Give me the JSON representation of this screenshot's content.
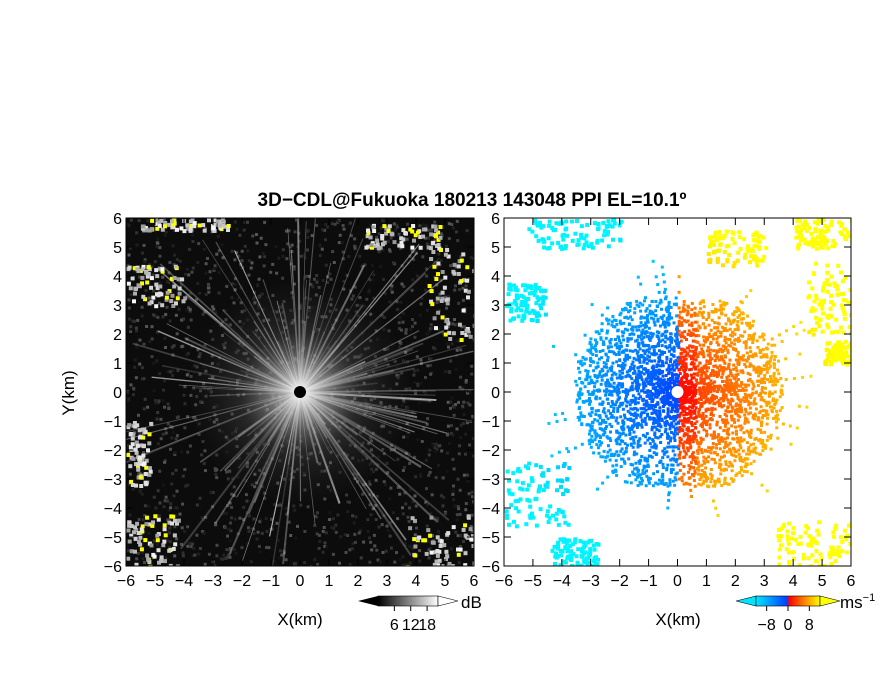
{
  "chart_data": [
    {
      "type": "heatmap",
      "panel": "left",
      "xlabel": "X(km)",
      "ylabel": "Y(km)",
      "xlim": [
        -6,
        6
      ],
      "ylim": [
        -6,
        6
      ],
      "xticks": [
        -6,
        -5,
        -4,
        -3,
        -2,
        -1,
        0,
        1,
        2,
        3,
        4,
        5,
        6
      ],
      "yticks": [
        -6,
        -5,
        -4,
        -3,
        -2,
        -1,
        0,
        1,
        2,
        3,
        4,
        5,
        6
      ],
      "colormap": [
        "#000000",
        "#ffffff",
        "#ffff00"
      ],
      "colorbar": {
        "unit": "dB",
        "ticks": [
          6,
          12,
          18
        ]
      }
    },
    {
      "type": "heatmap",
      "panel": "right",
      "xlabel": "X(km)",
      "ylabel": "",
      "xlim": [
        -6,
        6
      ],
      "ylim": [
        -6,
        6
      ],
      "xticks": [
        -6,
        -5,
        -4,
        -3,
        -2,
        -1,
        0,
        1,
        2,
        3,
        4,
        5,
        6
      ],
      "yticks": [
        -6,
        -5,
        -4,
        -3,
        -2,
        -1,
        0,
        1,
        2,
        3,
        4,
        5,
        6
      ],
      "colormap": [
        "#00e5ff",
        "#0040ff",
        "#ff0000",
        "#ff8000",
        "#ffff00"
      ],
      "colorbar": {
        "unit": "ms",
        "unit_exponent": "−1",
        "ticks": [
          -8,
          0,
          8
        ]
      }
    }
  ],
  "title": "3D−CDL@Fukuoka 180213 143048 PPI EL=10.1º"
}
